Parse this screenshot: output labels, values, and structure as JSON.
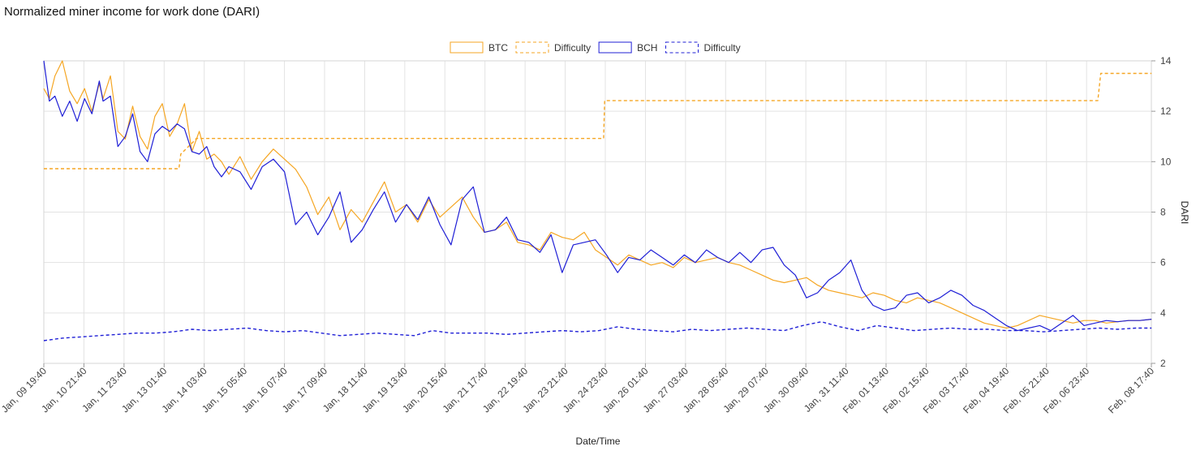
{
  "chart_data": {
    "type": "line",
    "title": "Normalized miner income for work done (DARI)",
    "xlabel": "Date/Time",
    "ylabel": "DARI",
    "ylim": [
      2,
      14
    ],
    "y_ticks": [
      "2",
      "4",
      "6",
      "8",
      "10",
      "12",
      "14"
    ],
    "y_axis_side": "right",
    "grid": true,
    "legend_position": "top-center",
    "x_tick_labels": [
      "Jan, 09 19:40",
      "Jan, 10 21:40",
      "Jan, 11 23:40",
      "Jan, 13 01:40",
      "Jan, 14 03:40",
      "Jan, 15 05:40",
      "Jan, 16 07:40",
      "Jan, 17 09:40",
      "Jan, 18 11:40",
      "Jan, 19 13:40",
      "Jan, 20 15:40",
      "Jan, 21 17:40",
      "Jan, 22 19:40",
      "Jan, 23 21:40",
      "Jan, 24 23:40",
      "Jan, 26 01:40",
      "Jan, 27 03:40",
      "Jan, 28 05:40",
      "Jan, 29 07:40",
      "Jan, 30 09:40",
      "Jan, 31 11:40",
      "Feb, 01 13:40",
      "Feb, 02 15:40",
      "Feb, 03 17:40",
      "Feb, 04 19:40",
      "Feb, 05 21:40",
      "Feb, 06 23:40",
      "Feb, 08 17:40"
    ],
    "x_tick_days": [
      0,
      1.0833,
      2.1667,
      3.25,
      4.3333,
      5.4167,
      6.5,
      7.5833,
      8.6667,
      9.75,
      10.8333,
      11.9167,
      13,
      14.0833,
      15.1667,
      16.25,
      17.3333,
      18.4167,
      19.5,
      20.5833,
      21.6667,
      22.75,
      23.8333,
      24.9167,
      26,
      27.0833,
      28.1667,
      29.9167
    ],
    "series": [
      {
        "name": "BTC",
        "color": "#f5a623",
        "dash": "solid",
        "x_days": [
          0,
          0.15,
          0.3,
          0.5,
          0.7,
          0.9,
          1.1,
          1.3,
          1.5,
          1.6,
          1.8,
          2.0,
          2.2,
          2.4,
          2.6,
          2.8,
          3.0,
          3.2,
          3.4,
          3.6,
          3.8,
          4.0,
          4.2,
          4.4,
          4.6,
          4.8,
          5.0,
          5.3,
          5.6,
          5.9,
          6.2,
          6.5,
          6.8,
          7.1,
          7.4,
          7.7,
          8.0,
          8.3,
          8.6,
          8.9,
          9.2,
          9.5,
          9.8,
          10.1,
          10.4,
          10.7,
          11.0,
          11.3,
          11.6,
          11.9,
          12.2,
          12.5,
          12.8,
          13.1,
          13.4,
          13.7,
          14.0,
          14.3,
          14.6,
          14.9,
          15.2,
          15.5,
          15.8,
          16.1,
          16.4,
          16.7,
          17.0,
          17.3,
          17.6,
          17.9,
          18.2,
          18.5,
          18.8,
          19.1,
          19.4,
          19.7,
          20.0,
          20.3,
          20.6,
          20.9,
          21.2,
          21.5,
          21.8,
          22.1,
          22.4,
          22.7,
          23.0,
          23.3,
          23.6,
          23.9,
          24.2,
          24.5,
          24.8,
          25.1,
          25.4,
          25.7,
          26.0,
          26.3,
          26.6,
          26.9,
          27.2,
          27.5,
          27.8,
          28.1,
          28.4,
          28.7,
          29.0,
          29.3,
          29.6,
          29.92
        ],
        "values": [
          12.9,
          12.5,
          13.4,
          14.0,
          12.8,
          12.3,
          12.9,
          12.0,
          13.1,
          12.5,
          13.4,
          11.2,
          10.9,
          12.2,
          11.0,
          10.5,
          11.8,
          12.3,
          11.0,
          11.5,
          12.3,
          10.4,
          11.2,
          10.1,
          10.3,
          10.0,
          9.5,
          10.2,
          9.3,
          10.0,
          10.5,
          10.1,
          9.7,
          9.0,
          7.9,
          8.6,
          7.3,
          8.1,
          7.6,
          8.4,
          9.2,
          8.0,
          8.3,
          7.6,
          8.5,
          7.8,
          8.2,
          8.6,
          7.8,
          7.2,
          7.3,
          7.6,
          6.8,
          6.7,
          6.5,
          7.2,
          7.0,
          6.9,
          7.2,
          6.5,
          6.2,
          5.9,
          6.3,
          6.1,
          5.9,
          6.0,
          5.8,
          6.2,
          6.0,
          6.1,
          6.2,
          6.0,
          5.9,
          5.7,
          5.5,
          5.3,
          5.2,
          5.3,
          5.4,
          5.1,
          4.9,
          4.8,
          4.7,
          4.6,
          4.8,
          4.7,
          4.5,
          4.4,
          4.6,
          4.5,
          4.4,
          4.2,
          4.0,
          3.8,
          3.6,
          3.5,
          3.4,
          3.5,
          3.7,
          3.9,
          3.8,
          3.7,
          3.6,
          3.7,
          3.7,
          3.6,
          3.65,
          3.7,
          3.7,
          3.75
        ]
      },
      {
        "name": "Difficulty",
        "color": "#f5a623",
        "dash": "dashed",
        "x_days": [
          0,
          3.65,
          3.7,
          4.08,
          4.12,
          15.12,
          15.15,
          28.47,
          28.55,
          29.92
        ],
        "values": [
          9.72,
          9.72,
          10.3,
          10.85,
          10.92,
          10.92,
          12.42,
          12.42,
          13.5,
          13.5
        ]
      },
      {
        "name": "BCH",
        "color": "#1f1fd6",
        "dash": "solid",
        "x_days": [
          0,
          0.15,
          0.3,
          0.5,
          0.7,
          0.9,
          1.1,
          1.3,
          1.5,
          1.6,
          1.8,
          2.0,
          2.2,
          2.4,
          2.6,
          2.8,
          3.0,
          3.2,
          3.4,
          3.6,
          3.8,
          4.0,
          4.2,
          4.4,
          4.6,
          4.8,
          5.0,
          5.3,
          5.6,
          5.9,
          6.2,
          6.5,
          6.8,
          7.1,
          7.4,
          7.7,
          8.0,
          8.3,
          8.6,
          8.9,
          9.2,
          9.5,
          9.8,
          10.1,
          10.4,
          10.7,
          11.0,
          11.3,
          11.6,
          11.9,
          12.2,
          12.5,
          12.8,
          13.1,
          13.4,
          13.7,
          14.0,
          14.3,
          14.6,
          14.9,
          15.2,
          15.5,
          15.8,
          16.1,
          16.4,
          16.7,
          17.0,
          17.3,
          17.6,
          17.9,
          18.2,
          18.5,
          18.8,
          19.1,
          19.4,
          19.7,
          20.0,
          20.3,
          20.6,
          20.9,
          21.2,
          21.5,
          21.8,
          22.1,
          22.4,
          22.7,
          23.0,
          23.3,
          23.6,
          23.9,
          24.2,
          24.5,
          24.8,
          25.1,
          25.4,
          25.7,
          26.0,
          26.3,
          26.6,
          26.9,
          27.2,
          27.5,
          27.8,
          28.1,
          28.4,
          28.7,
          29.0,
          29.3,
          29.6,
          29.92
        ],
        "values": [
          14.0,
          12.4,
          12.6,
          11.8,
          12.4,
          11.6,
          12.5,
          11.9,
          13.2,
          12.4,
          12.6,
          10.6,
          11.0,
          11.9,
          10.4,
          10.0,
          11.1,
          11.4,
          11.2,
          11.5,
          11.3,
          10.4,
          10.3,
          10.6,
          9.8,
          9.4,
          9.8,
          9.6,
          8.9,
          9.8,
          10.1,
          9.6,
          7.5,
          8.0,
          7.1,
          7.8,
          8.8,
          6.8,
          7.3,
          8.1,
          8.8,
          7.6,
          8.3,
          7.7,
          8.6,
          7.5,
          6.7,
          8.5,
          9.0,
          7.2,
          7.3,
          7.8,
          6.9,
          6.8,
          6.4,
          7.1,
          5.6,
          6.7,
          6.8,
          6.9,
          6.3,
          5.6,
          6.2,
          6.1,
          6.5,
          6.2,
          5.9,
          6.3,
          6.0,
          6.5,
          6.2,
          6.0,
          6.4,
          6.0,
          6.5,
          6.6,
          5.9,
          5.5,
          4.6,
          4.8,
          5.3,
          5.6,
          6.1,
          4.9,
          4.3,
          4.1,
          4.2,
          4.7,
          4.8,
          4.4,
          4.6,
          4.9,
          4.7,
          4.3,
          4.1,
          3.8,
          3.5,
          3.3,
          3.4,
          3.5,
          3.3,
          3.6,
          3.9,
          3.5,
          3.6,
          3.7,
          3.65,
          3.7,
          3.7,
          3.75
        ]
      },
      {
        "name": "Difficulty",
        "color": "#1f1fd6",
        "dash": "dashed",
        "x_days": [
          0,
          0.5,
          1.0,
          1.5,
          2.0,
          2.5,
          3.0,
          3.5,
          4.0,
          4.5,
          5.0,
          5.5,
          6.0,
          6.5,
          7.0,
          7.5,
          8.0,
          8.5,
          9.0,
          9.5,
          10.0,
          10.5,
          11.0,
          11.5,
          12.0,
          12.5,
          13.0,
          13.5,
          14.0,
          14.5,
          15.0,
          15.5,
          16.0,
          16.5,
          17.0,
          17.5,
          18.0,
          18.5,
          19.0,
          19.5,
          20.0,
          20.5,
          21.0,
          21.5,
          22.0,
          22.5,
          23.0,
          23.5,
          24.0,
          24.5,
          25.0,
          25.5,
          26.0,
          26.5,
          27.0,
          27.5,
          28.0,
          28.5,
          29.0,
          29.5,
          29.92
        ],
        "values": [
          2.9,
          3.0,
          3.05,
          3.1,
          3.15,
          3.2,
          3.2,
          3.25,
          3.35,
          3.3,
          3.35,
          3.4,
          3.3,
          3.25,
          3.3,
          3.2,
          3.1,
          3.15,
          3.2,
          3.15,
          3.1,
          3.3,
          3.2,
          3.2,
          3.2,
          3.15,
          3.2,
          3.25,
          3.3,
          3.25,
          3.3,
          3.45,
          3.35,
          3.3,
          3.25,
          3.35,
          3.3,
          3.35,
          3.4,
          3.35,
          3.3,
          3.5,
          3.65,
          3.45,
          3.3,
          3.5,
          3.4,
          3.3,
          3.35,
          3.4,
          3.35,
          3.35,
          3.3,
          3.3,
          3.25,
          3.3,
          3.35,
          3.4,
          3.35,
          3.4,
          3.4
        ]
      }
    ]
  }
}
